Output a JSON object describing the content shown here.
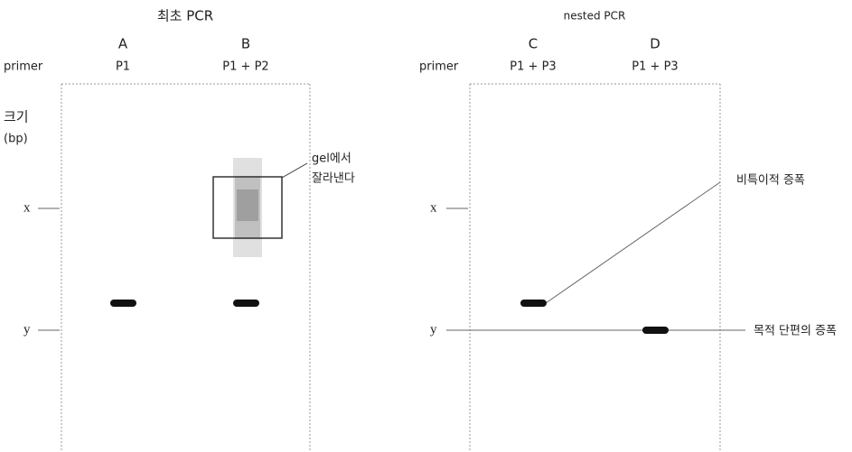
{
  "left_panel": {
    "title": "최초 PCR",
    "primer_label": "primer",
    "size_label": [
      "크기",
      "(bp)"
    ],
    "lanes": [
      {
        "name": "A",
        "primer": "P1"
      },
      {
        "name": "B",
        "primer": "P1 + P2"
      }
    ],
    "markers": [
      "x",
      "y"
    ],
    "callout": [
      "gel에서",
      "잘라낸다"
    ]
  },
  "right_panel": {
    "title": "nested PCR",
    "primer_label": "primer",
    "lanes": [
      {
        "name": "C",
        "primer": "P1 + P3"
      },
      {
        "name": "D",
        "primer": "P1 + P3"
      }
    ],
    "markers": [
      "x",
      "y"
    ],
    "annotations": [
      "비특이적 증폭",
      "목적 단편의 증폭"
    ]
  }
}
